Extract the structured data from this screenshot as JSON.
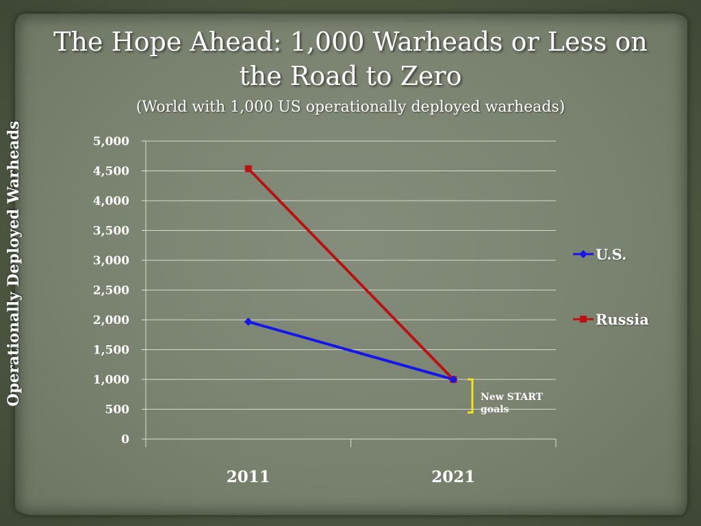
{
  "chart_data": {
    "type": "line",
    "title": "The Hope Ahead:  1,000  Warheads or Less on the Road to Zero",
    "subtitle": "(World with 1,000 US operationally deployed warheads)",
    "ylabel": "Operationally Deployed Warheads",
    "xlabel": "",
    "categories": [
      "2011",
      "2021"
    ],
    "ylim": [
      0,
      5000
    ],
    "yticks": [
      "0",
      "500",
      "1,000",
      "1,500",
      "2,000",
      "2,500",
      "3,000",
      "3,500",
      "4,000",
      "4,500",
      "5,000"
    ],
    "ytick_values": [
      0,
      500,
      1000,
      1500,
      2000,
      2500,
      3000,
      3500,
      4000,
      4500,
      5000
    ],
    "series": [
      {
        "name": "U.S.",
        "values": [
          1968,
          1000
        ],
        "color": "#1515ee",
        "marker": "diamond"
      },
      {
        "name": "Russia",
        "values": [
          4537,
          1000
        ],
        "color": "#bb1111",
        "marker": "square"
      }
    ],
    "grid": true,
    "legend_position": "right",
    "annotation": {
      "text": "New START goals",
      "bracket_color": "#f5e11a",
      "range": [
        250,
        1000
      ]
    }
  }
}
